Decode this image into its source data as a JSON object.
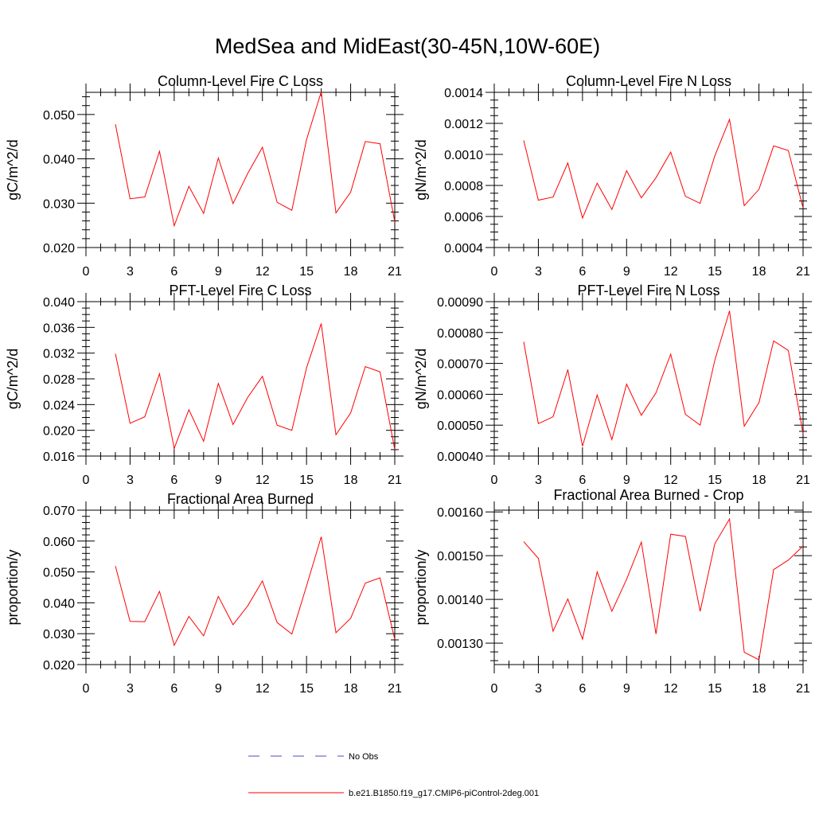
{
  "title": "MedSea and MidEast(30-45N,10W-60E)",
  "colors": {
    "model": "#ff0000",
    "obs": "#4b4bcc",
    "axis": "#000000"
  },
  "legend": {
    "entries": [
      {
        "label": "No Obs",
        "style": "dashed",
        "color": "#4b4bcc"
      },
      {
        "label": "b.e21.B1850.f19_g17.CMIP6-piControl-2deg.001",
        "style": "solid",
        "color": "#ff0000"
      }
    ]
  },
  "chart_data": [
    {
      "type": "line",
      "title": "Column-Level Fire C Loss",
      "xlabel": "",
      "ylabel": "gC/m^2/d",
      "xlim": [
        0,
        21
      ],
      "ylim": [
        0.02,
        0.055
      ],
      "xticks": [
        0,
        3,
        6,
        9,
        12,
        15,
        18,
        21
      ],
      "yticks": [
        0.02,
        0.03,
        0.04,
        0.05
      ],
      "ytick_labels": [
        "0.020",
        "0.030",
        "0.040",
        "0.050"
      ],
      "y_minor_step": 0.002,
      "x": [
        2,
        3,
        4,
        5,
        6,
        7,
        8,
        9,
        10,
        11,
        12,
        13,
        14,
        15,
        16,
        17,
        18,
        19,
        20,
        21
      ],
      "series": [
        {
          "name": "b.e21.B1850.f19_g17.CMIP6-piControl-2deg.001",
          "values": [
            0.0478,
            0.031,
            0.0314,
            0.0417,
            0.0249,
            0.0338,
            0.0277,
            0.0402,
            0.0299,
            0.0367,
            0.0426,
            0.0302,
            0.0284,
            0.0443,
            0.0551,
            0.0278,
            0.0325,
            0.0439,
            0.0434,
            0.0258
          ]
        }
      ]
    },
    {
      "type": "line",
      "title": "Column-Level Fire N Loss",
      "xlabel": "",
      "ylabel": "gN/m^2/d",
      "xlim": [
        0,
        21
      ],
      "ylim": [
        0.0004,
        0.0014
      ],
      "xticks": [
        0,
        3,
        6,
        9,
        12,
        15,
        18,
        21
      ],
      "yticks": [
        0.0004,
        0.0006,
        0.0008,
        0.001,
        0.0012,
        0.0014
      ],
      "ytick_labels": [
        "0.0004",
        "0.0006",
        "0.0008",
        "0.0010",
        "0.0012",
        "0.0014"
      ],
      "y_minor_step": 5e-05,
      "x": [
        2,
        3,
        4,
        5,
        6,
        7,
        8,
        9,
        10,
        11,
        12,
        13,
        14,
        15,
        16,
        17,
        18,
        19,
        20,
        21
      ],
      "series": [
        {
          "name": "b.e21.B1850.f19_g17.CMIP6-piControl-2deg.001",
          "values": [
            0.00109,
            0.000705,
            0.000725,
            0.000945,
            0.00059,
            0.000815,
            0.000645,
            0.000895,
            0.00072,
            0.00085,
            0.001015,
            0.00073,
            0.000685,
            0.00099,
            0.001225,
            0.00067,
            0.000775,
            0.001055,
            0.001025,
            0.000655
          ]
        }
      ]
    },
    {
      "type": "line",
      "title": "PFT-Level Fire C Loss",
      "xlabel": "",
      "ylabel": "gC/m^2/d",
      "xlim": [
        0,
        21
      ],
      "ylim": [
        0.016,
        0.04
      ],
      "xticks": [
        0,
        3,
        6,
        9,
        12,
        15,
        18,
        21
      ],
      "yticks": [
        0.016,
        0.02,
        0.024,
        0.028,
        0.032,
        0.036,
        0.04
      ],
      "ytick_labels": [
        "0.016",
        "0.020",
        "0.024",
        "0.028",
        "0.032",
        "0.036",
        "0.040"
      ],
      "y_minor_step": 0.001,
      "x": [
        2,
        3,
        4,
        5,
        6,
        7,
        8,
        9,
        10,
        11,
        12,
        13,
        14,
        15,
        16,
        17,
        18,
        19,
        20,
        21
      ],
      "series": [
        {
          "name": "b.e21.B1850.f19_g17.CMIP6-piControl-2deg.001",
          "values": [
            0.0319,
            0.0211,
            0.0221,
            0.0288,
            0.0172,
            0.0232,
            0.0183,
            0.0273,
            0.0209,
            0.0251,
            0.0284,
            0.0208,
            0.02,
            0.0297,
            0.0366,
            0.0193,
            0.0227,
            0.0299,
            0.0291,
            0.017
          ]
        }
      ]
    },
    {
      "type": "line",
      "title": "PFT-Level Fire N Loss",
      "xlabel": "",
      "ylabel": "gN/m^2/d",
      "xlim": [
        0,
        21
      ],
      "ylim": [
        0.0004,
        0.0009
      ],
      "xticks": [
        0,
        3,
        6,
        9,
        12,
        15,
        18,
        21
      ],
      "yticks": [
        0.0004,
        0.0005,
        0.0006,
        0.0007,
        0.0008,
        0.0009
      ],
      "ytick_labels": [
        "0.00040",
        "0.00050",
        "0.00060",
        "0.00070",
        "0.00080",
        "0.00090"
      ],
      "y_minor_step": 2e-05,
      "x": [
        2,
        3,
        4,
        5,
        6,
        7,
        8,
        9,
        10,
        11,
        12,
        13,
        14,
        15,
        16,
        17,
        18,
        19,
        20,
        21
      ],
      "series": [
        {
          "name": "b.e21.B1850.f19_g17.CMIP6-piControl-2deg.001",
          "values": [
            0.00077,
            0.000505,
            0.000527,
            0.00068,
            0.000432,
            0.000598,
            0.000453,
            0.000633,
            0.000532,
            0.000605,
            0.00073,
            0.000535,
            0.0005,
            0.00071,
            0.00087,
            0.000497,
            0.000573,
            0.000773,
            0.000742,
            0.000472
          ]
        }
      ]
    },
    {
      "type": "line",
      "title": "Fractional Area Burned",
      "xlabel": "",
      "ylabel": "proportion/y",
      "xlim": [
        0,
        21
      ],
      "ylim": [
        0.02,
        0.07
      ],
      "xticks": [
        0,
        3,
        6,
        9,
        12,
        15,
        18,
        21
      ],
      "yticks": [
        0.02,
        0.03,
        0.04,
        0.05,
        0.06,
        0.07
      ],
      "ytick_labels": [
        "0.020",
        "0.030",
        "0.040",
        "0.050",
        "0.060",
        "0.070"
      ],
      "y_minor_step": 0.002,
      "x": [
        2,
        3,
        4,
        5,
        6,
        7,
        8,
        9,
        10,
        11,
        12,
        13,
        14,
        15,
        16,
        17,
        18,
        19,
        20,
        21
      ],
      "series": [
        {
          "name": "b.e21.B1850.f19_g17.CMIP6-piControl-2deg.001",
          "values": [
            0.0519,
            0.034,
            0.0339,
            0.0437,
            0.0262,
            0.0356,
            0.0293,
            0.0421,
            0.0329,
            0.039,
            0.0471,
            0.0336,
            0.0299,
            0.0454,
            0.0614,
            0.0303,
            0.035,
            0.0464,
            0.0481,
            0.0282
          ]
        }
      ]
    },
    {
      "type": "line",
      "title": "Fractional Area Burned - Crop",
      "xlabel": "",
      "ylabel": "proportion/y",
      "xlim": [
        0,
        21
      ],
      "ylim": [
        0.001251,
        0.001604
      ],
      "xticks": [
        0,
        3,
        6,
        9,
        12,
        15,
        18,
        21
      ],
      "yticks": [
        0.0013,
        0.0014,
        0.0015,
        0.0016
      ],
      "ytick_labels": [
        "0.00130",
        "0.00140",
        "0.00150",
        "0.00160"
      ],
      "y_minor_step": 2e-05,
      "x": [
        2,
        3,
        4,
        5,
        6,
        7,
        8,
        9,
        10,
        11,
        12,
        13,
        14,
        15,
        16,
        17,
        18,
        19,
        20,
        21
      ],
      "series": [
        {
          "name": "b.e21.B1850.f19_g17.CMIP6-piControl-2deg.001",
          "values": [
            0.001532,
            0.001494,
            0.001327,
            0.001401,
            0.001309,
            0.001463,
            0.001373,
            0.001446,
            0.001531,
            0.001321,
            0.001549,
            0.001544,
            0.001373,
            0.001527,
            0.001584,
            0.001279,
            0.001262,
            0.001468,
            0.00149,
            0.001522
          ]
        }
      ]
    }
  ]
}
